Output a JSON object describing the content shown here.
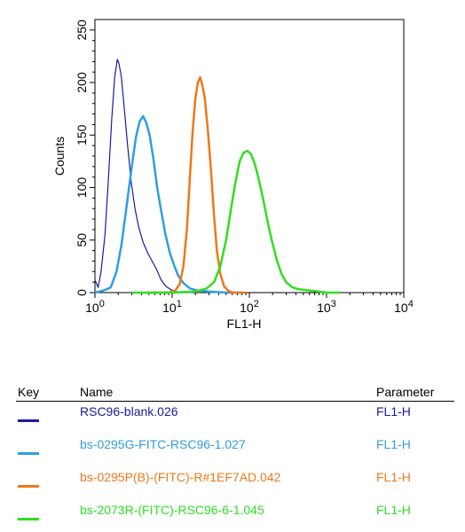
{
  "chart_data": {
    "type": "line",
    "xlabel": "FL1-H",
    "ylabel": "Counts",
    "x_scale": "log",
    "xlim": [
      1,
      10000
    ],
    "ylim": [
      0,
      260
    ],
    "x_ticks": [
      {
        "value": 1,
        "base": "10",
        "exp": "0"
      },
      {
        "value": 10,
        "base": "10",
        "exp": "1"
      },
      {
        "value": 100,
        "base": "10",
        "exp": "2"
      },
      {
        "value": 1000,
        "base": "10",
        "exp": "3"
      },
      {
        "value": 10000,
        "base": "10",
        "exp": "4"
      }
    ],
    "y_ticks": [
      "0",
      "50",
      "100",
      "150",
      "200",
      "250"
    ],
    "grid": false,
    "series": [
      {
        "name": "RSC96-blank.026",
        "color": "#1a1aa0",
        "stroke": 1.2,
        "points": [
          [
            1.0,
            12
          ],
          [
            1.1,
            5
          ],
          [
            1.2,
            20
          ],
          [
            1.35,
            55
          ],
          [
            1.5,
            110
          ],
          [
            1.65,
            165
          ],
          [
            1.8,
            205
          ],
          [
            1.95,
            222
          ],
          [
            2.05,
            218
          ],
          [
            2.2,
            205
          ],
          [
            2.4,
            175
          ],
          [
            2.65,
            140
          ],
          [
            2.95,
            105
          ],
          [
            3.3,
            80
          ],
          [
            3.7,
            62
          ],
          [
            4.2,
            48
          ],
          [
            4.8,
            38
          ],
          [
            5.5,
            30
          ],
          [
            6.3,
            22
          ],
          [
            7.2,
            12
          ],
          [
            8.3,
            6
          ],
          [
            9.5,
            3
          ],
          [
            11,
            1
          ],
          [
            13,
            0
          ],
          [
            16,
            0
          ]
        ]
      },
      {
        "name": "bs-0295G-FITC-RSC96-1.027",
        "color": "#2f9ee0",
        "stroke": 2.5,
        "points": [
          [
            1.0,
            0
          ],
          [
            1.3,
            2
          ],
          [
            1.6,
            5
          ],
          [
            1.9,
            20
          ],
          [
            2.2,
            45
          ],
          [
            2.6,
            85
          ],
          [
            3.0,
            120
          ],
          [
            3.4,
            148
          ],
          [
            3.8,
            163
          ],
          [
            4.2,
            168
          ],
          [
            4.6,
            162
          ],
          [
            5.1,
            150
          ],
          [
            5.7,
            128
          ],
          [
            6.4,
            100
          ],
          [
            7.2,
            78
          ],
          [
            8.2,
            55
          ],
          [
            9.3,
            38
          ],
          [
            10.6,
            26
          ],
          [
            12,
            16
          ],
          [
            14,
            9
          ],
          [
            17,
            4
          ],
          [
            21,
            2
          ],
          [
            30,
            1
          ],
          [
            50,
            0
          ],
          [
            80,
            0
          ]
        ]
      },
      {
        "name": "bs-0295P(B)-(FITC)-R#1EF7AD.042",
        "color": "#f07818",
        "stroke": 2.5,
        "points": [
          [
            5,
            0
          ],
          [
            9,
            0
          ],
          [
            11,
            2
          ],
          [
            12.5,
            8
          ],
          [
            14,
            25
          ],
          [
            15.5,
            60
          ],
          [
            17,
            110
          ],
          [
            18.5,
            155
          ],
          [
            20,
            185
          ],
          [
            21.5,
            200
          ],
          [
            23,
            205
          ],
          [
            24.5,
            198
          ],
          [
            26.5,
            185
          ],
          [
            29,
            155
          ],
          [
            32,
            115
          ],
          [
            35,
            72
          ],
          [
            38,
            40
          ],
          [
            42,
            18
          ],
          [
            47,
            6
          ],
          [
            53,
            2
          ],
          [
            60,
            0
          ],
          [
            90,
            0
          ]
        ]
      },
      {
        "name": "bs-2073R-(FITC)-RSC96-6-1.045",
        "color": "#2de020",
        "stroke": 2.5,
        "points": [
          [
            3,
            0
          ],
          [
            10,
            0
          ],
          [
            20,
            1
          ],
          [
            28,
            4
          ],
          [
            35,
            10
          ],
          [
            42,
            25
          ],
          [
            50,
            50
          ],
          [
            58,
            80
          ],
          [
            66,
            105
          ],
          [
            75,
            125
          ],
          [
            84,
            133
          ],
          [
            94,
            135
          ],
          [
            105,
            132
          ],
          [
            118,
            122
          ],
          [
            132,
            108
          ],
          [
            150,
            90
          ],
          [
            170,
            70
          ],
          [
            195,
            50
          ],
          [
            225,
            32
          ],
          [
            260,
            18
          ],
          [
            300,
            10
          ],
          [
            360,
            5
          ],
          [
            450,
            3
          ],
          [
            600,
            2
          ],
          [
            800,
            1
          ],
          [
            1000,
            0
          ],
          [
            1500,
            0
          ]
        ]
      }
    ]
  },
  "legend": {
    "headers": {
      "key": "Key",
      "name": "Name",
      "parameter": "Parameter"
    },
    "entries": [
      {
        "name": "RSC96-blank.026",
        "parameter": "FL1-H",
        "color": "#1a1aa0"
      },
      {
        "name": "bs-0295G-FITC-RSC96-1.027",
        "parameter": "FL1-H",
        "color": "#2f9ee0"
      },
      {
        "name": "bs-0295P(B)-(FITC)-R#1EF7AD.042",
        "parameter": "FL1-H",
        "color": "#f07818"
      },
      {
        "name": "bs-2073R-(FITC)-RSC96-6-1.045",
        "parameter": "FL1-H",
        "color": "#2de020"
      }
    ]
  }
}
